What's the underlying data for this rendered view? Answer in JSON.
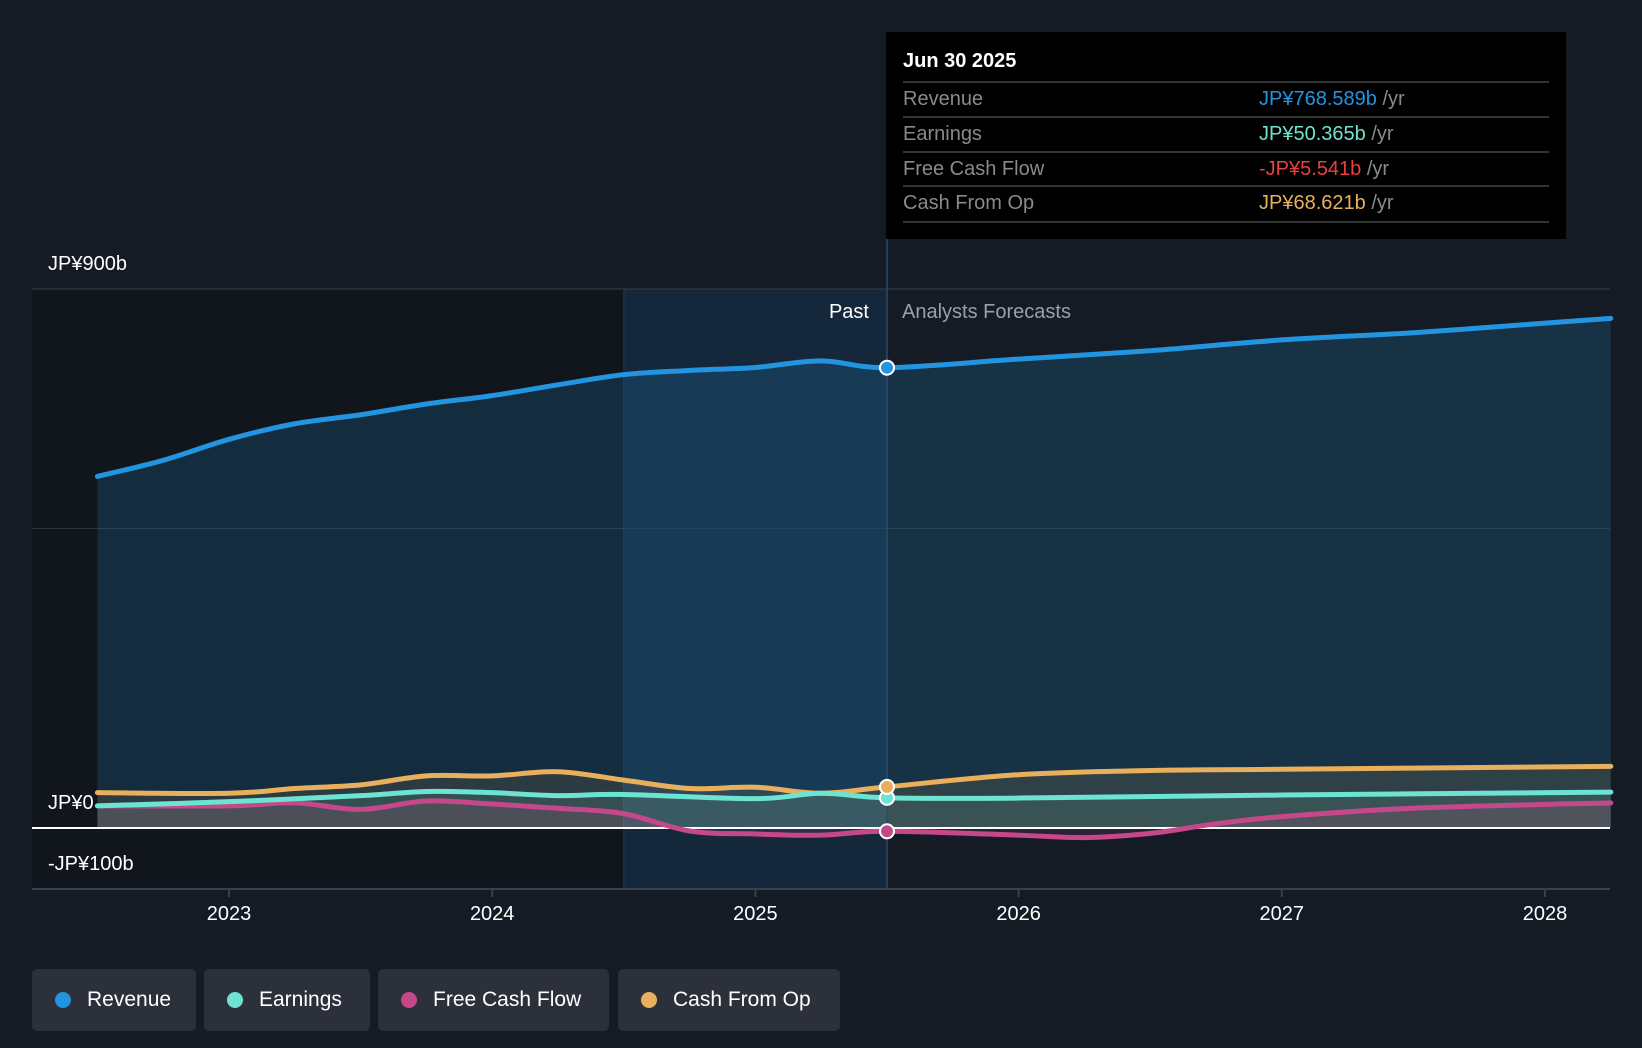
{
  "tooltip": {
    "date": "Jun 30 2025",
    "rows": [
      {
        "label": "Revenue",
        "value": "JP¥768.589b",
        "unit": "/yr",
        "color": "#2394df"
      },
      {
        "label": "Earnings",
        "value": "JP¥50.365b",
        "unit": "/yr",
        "color": "#6ce4d1"
      },
      {
        "label": "Free Cash Flow",
        "value": "-JP¥5.541b",
        "unit": "/yr",
        "color": "#e94040"
      },
      {
        "label": "Cash From Op",
        "value": "JP¥68.621b",
        "unit": "/yr",
        "color": "#e8b05c"
      }
    ]
  },
  "chart_data": {
    "type": "line",
    "yticks": [
      {
        "value": 900,
        "label": "JP¥900b"
      },
      {
        "value": 0,
        "label": "JP¥0"
      },
      {
        "value": -100,
        "label": "-JP¥100b"
      }
    ],
    "ylim": [
      -100,
      900
    ],
    "xlim": [
      2022.25,
      2028.25
    ],
    "xticks": [
      2023,
      2024,
      2025,
      2026,
      2027,
      2028
    ],
    "xtick_labels": [
      "2023",
      "2024",
      "2025",
      "2026",
      "2027",
      "2028"
    ],
    "past_label": "Past",
    "forecast_label": "Analysts Forecasts",
    "past_end": 2025.5,
    "highlight_start": 2024.5,
    "series": [
      {
        "name": "Revenue",
        "color": "#2394df",
        "x": [
          2022.5,
          2022.75,
          2023,
          2023.25,
          2023.5,
          2023.75,
          2024,
          2024.25,
          2024.5,
          2024.75,
          2025,
          2025.25,
          2025.5,
          2026,
          2026.5,
          2027,
          2027.5,
          2028,
          2028.25
        ],
        "values": [
          587,
          614,
          649,
          675,
          690,
          708,
          722,
          740,
          757,
          764,
          769,
          780,
          768.6,
          783,
          797,
          815,
          827,
          843,
          851
        ]
      },
      {
        "name": "Earnings",
        "color": "#6ce4d1",
        "x": [
          2022.5,
          2023,
          2023.5,
          2023.75,
          2024,
          2024.25,
          2024.5,
          2025,
          2025.25,
          2025.5,
          2026,
          2027,
          2028.25
        ],
        "values": [
          37,
          44,
          54,
          61,
          59,
          54,
          56,
          49,
          58,
          50.4,
          50,
          55,
          60
        ]
      },
      {
        "name": "Free Cash Flow",
        "color": "#c4488a",
        "x": [
          2022.5,
          2023,
          2023.25,
          2023.5,
          2023.75,
          2024,
          2024.25,
          2024.5,
          2024.75,
          2025,
          2025.25,
          2025.5,
          2026,
          2026.25,
          2026.5,
          2026.75,
          2027,
          2027.5,
          2028.25
        ],
        "values": [
          37,
          37,
          42,
          31,
          45,
          40,
          33,
          24,
          -5,
          -10,
          -12,
          -5.5,
          -12,
          -16,
          -9,
          7,
          19,
          33,
          42
        ]
      },
      {
        "name": "Cash From Op",
        "color": "#e8b05c",
        "x": [
          2022.5,
          2023,
          2023.25,
          2023.5,
          2023.75,
          2024,
          2024.25,
          2024.5,
          2024.75,
          2025,
          2025.25,
          2025.5,
          2026,
          2026.5,
          2027,
          2028.25
        ],
        "values": [
          59,
          58,
          66,
          72,
          87,
          87,
          94,
          80,
          66,
          68,
          58,
          68.6,
          89,
          96,
          98,
          103
        ]
      }
    ]
  }
}
